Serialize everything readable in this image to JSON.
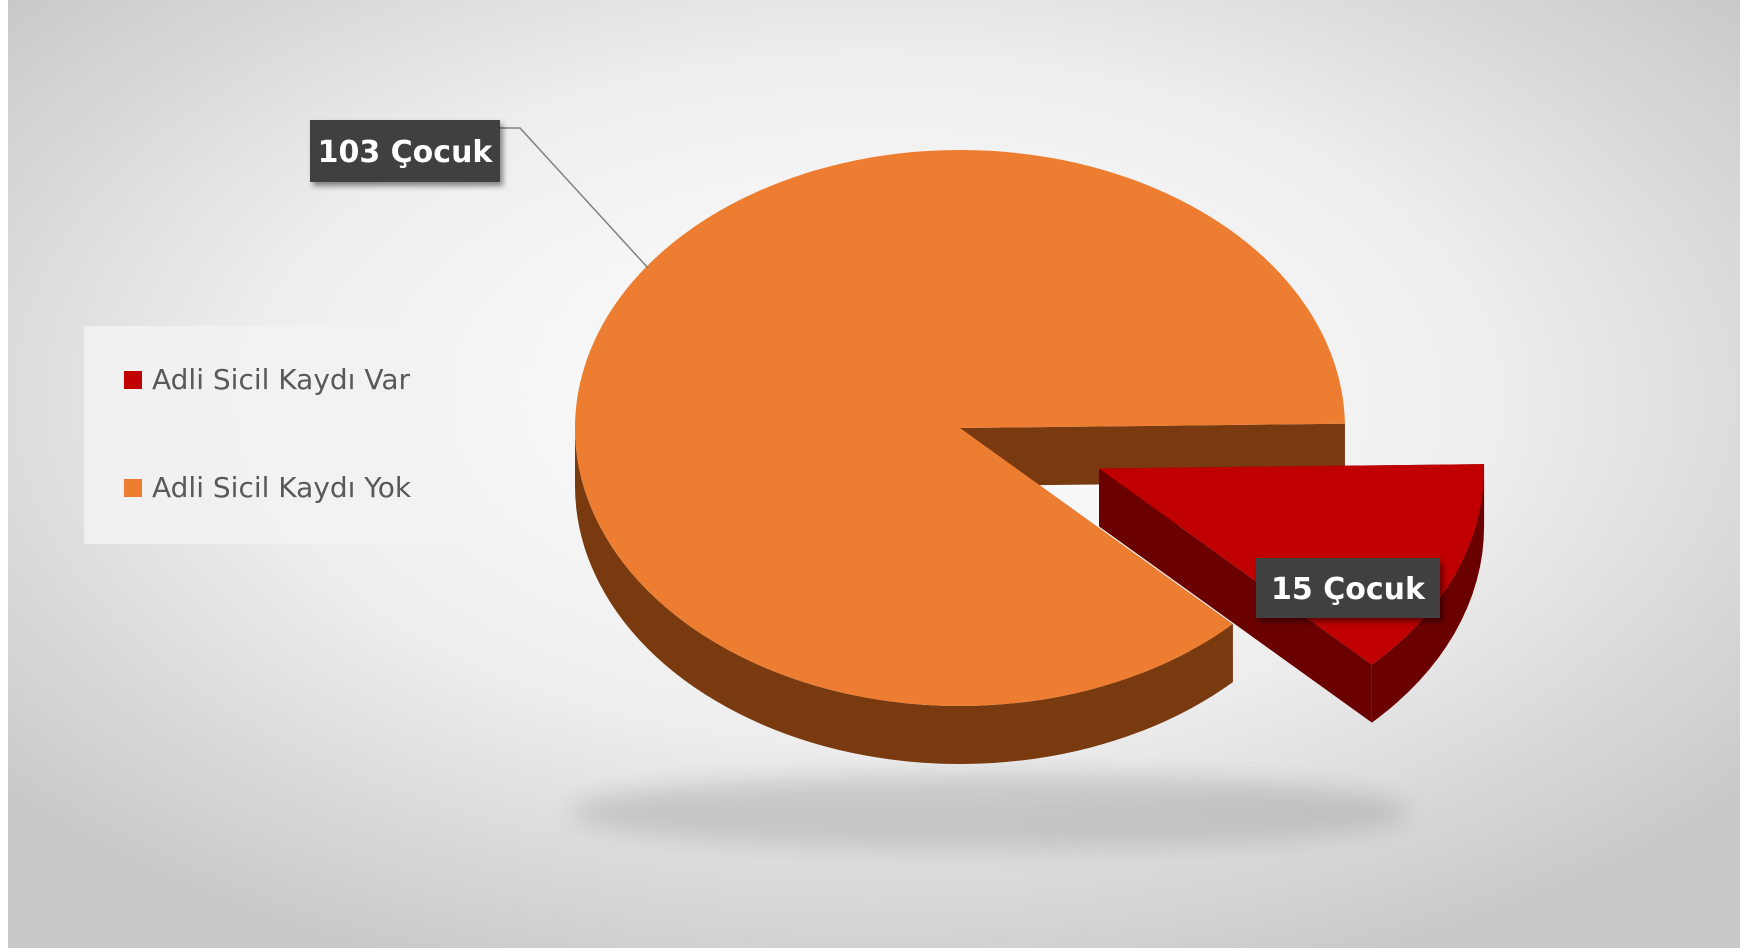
{
  "chart_data": {
    "type": "pie",
    "style": "3d-exploded",
    "categories": [
      "Adli Sicil Kaydı Var",
      "Adli Sicil Kaydı Yok"
    ],
    "values": [
      15,
      103
    ],
    "data_labels": [
      "15  Çocuk",
      "103 Çocuk"
    ],
    "colors": [
      "#c00000",
      "#ed7d31"
    ],
    "side_colors": [
      "#6b0000",
      "#7a3a10"
    ],
    "legend_position": "left",
    "exploded_slice": 0,
    "title": ""
  }
}
